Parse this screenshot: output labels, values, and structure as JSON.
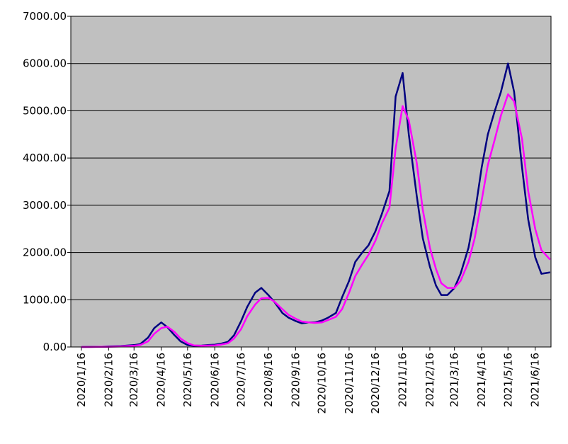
{
  "chart_data": {
    "type": "line",
    "x": [
      "2020/1/16",
      "2020/1/23",
      "2020/2/1",
      "2020/2/8",
      "2020/2/16",
      "2020/2/23",
      "2020/3/1",
      "2020/3/8",
      "2020/3/16",
      "2020/3/23",
      "2020/4/1",
      "2020/4/8",
      "2020/4/16",
      "2020/4/23",
      "2020/5/1",
      "2020/5/8",
      "2020/5/16",
      "2020/5/23",
      "2020/6/1",
      "2020/6/8",
      "2020/6/16",
      "2020/6/23",
      "2020/7/1",
      "2020/7/8",
      "2020/7/16",
      "2020/7/23",
      "2020/8/1",
      "2020/8/8",
      "2020/8/16",
      "2020/8/23",
      "2020/9/1",
      "2020/9/8",
      "2020/9/16",
      "2020/9/23",
      "2020/10/1",
      "2020/10/8",
      "2020/10/16",
      "2020/10/23",
      "2020/11/1",
      "2020/11/8",
      "2020/11/16",
      "2020/11/23",
      "2020/12/1",
      "2020/12/8",
      "2020/12/16",
      "2020/12/23",
      "2021/1/1",
      "2021/1/8",
      "2021/1/16",
      "2021/1/23",
      "2021/2/1",
      "2021/2/8",
      "2021/2/16",
      "2021/2/23",
      "2021/3/1",
      "2021/3/8",
      "2021/3/16",
      "2021/3/23",
      "2021/4/1",
      "2021/4/8",
      "2021/4/16",
      "2021/4/23",
      "2021/5/1",
      "2021/5/8",
      "2021/5/16",
      "2021/5/23",
      "2021/6/1",
      "2021/6/8",
      "2021/6/16",
      "2021/6/23",
      "2021/7/3"
    ],
    "series": [
      {
        "color": "#000080",
        "values": [
          0,
          1,
          3,
          5,
          10,
          15,
          20,
          30,
          40,
          60,
          200,
          400,
          520,
          420,
          250,
          120,
          40,
          25,
          30,
          40,
          50,
          70,
          110,
          250,
          550,
          850,
          1150,
          1250,
          1100,
          950,
          720,
          620,
          550,
          500,
          520,
          520,
          560,
          620,
          720,
          1050,
          1400,
          1800,
          2000,
          2150,
          2450,
          2800,
          3300,
          5300,
          5800,
          4500,
          3200,
          2300,
          1700,
          1300,
          1100,
          1100,
          1250,
          1550,
          2100,
          2800,
          3800,
          4500,
          5000,
          5400,
          6000,
          5400,
          3800,
          2700,
          1900,
          1550,
          1580
        ]
      },
      {
        "color": "#ff00ff",
        "values": [
          0,
          0,
          2,
          3,
          5,
          8,
          12,
          20,
          25,
          40,
          120,
          280,
          400,
          430,
          320,
          180,
          80,
          35,
          25,
          30,
          35,
          50,
          80,
          180,
          380,
          650,
          900,
          1030,
          1040,
          960,
          800,
          680,
          600,
          540,
          520,
          510,
          520,
          570,
          640,
          800,
          1150,
          1500,
          1750,
          1950,
          2250,
          2600,
          2950,
          4200,
          5100,
          4800,
          3900,
          2900,
          2100,
          1650,
          1350,
          1250,
          1250,
          1400,
          1800,
          2300,
          3100,
          3850,
          4400,
          4900,
          5350,
          5200,
          4400,
          3300,
          2500,
          2050,
          1850
        ]
      }
    ],
    "xlim": [
      "2020/1/4",
      "2021/7/4"
    ],
    "xticks": [
      "2020/1/16",
      "2020/2/16",
      "2020/3/16",
      "2020/4/16",
      "2020/5/16",
      "2020/6/16",
      "2020/7/16",
      "2020/8/16",
      "2020/9/16",
      "2020/10/16",
      "2020/11/16",
      "2020/12/16",
      "2021/1/16",
      "2021/2/16",
      "2021/3/16",
      "2021/4/16",
      "2021/5/16",
      "2021/6/16"
    ],
    "ylim": [
      0,
      7000
    ],
    "yticks": [
      {
        "value": 0,
        "label": "0.00"
      },
      {
        "value": 1000,
        "label": "1000.00"
      },
      {
        "value": 2000,
        "label": "2000.00"
      },
      {
        "value": 3000,
        "label": "3000.00"
      },
      {
        "value": 4000,
        "label": "4000.00"
      },
      {
        "value": 5000,
        "label": "5000.00"
      },
      {
        "value": 6000,
        "label": "6000.00"
      },
      {
        "value": 7000,
        "label": "7000.00"
      }
    ],
    "grid": true
  }
}
